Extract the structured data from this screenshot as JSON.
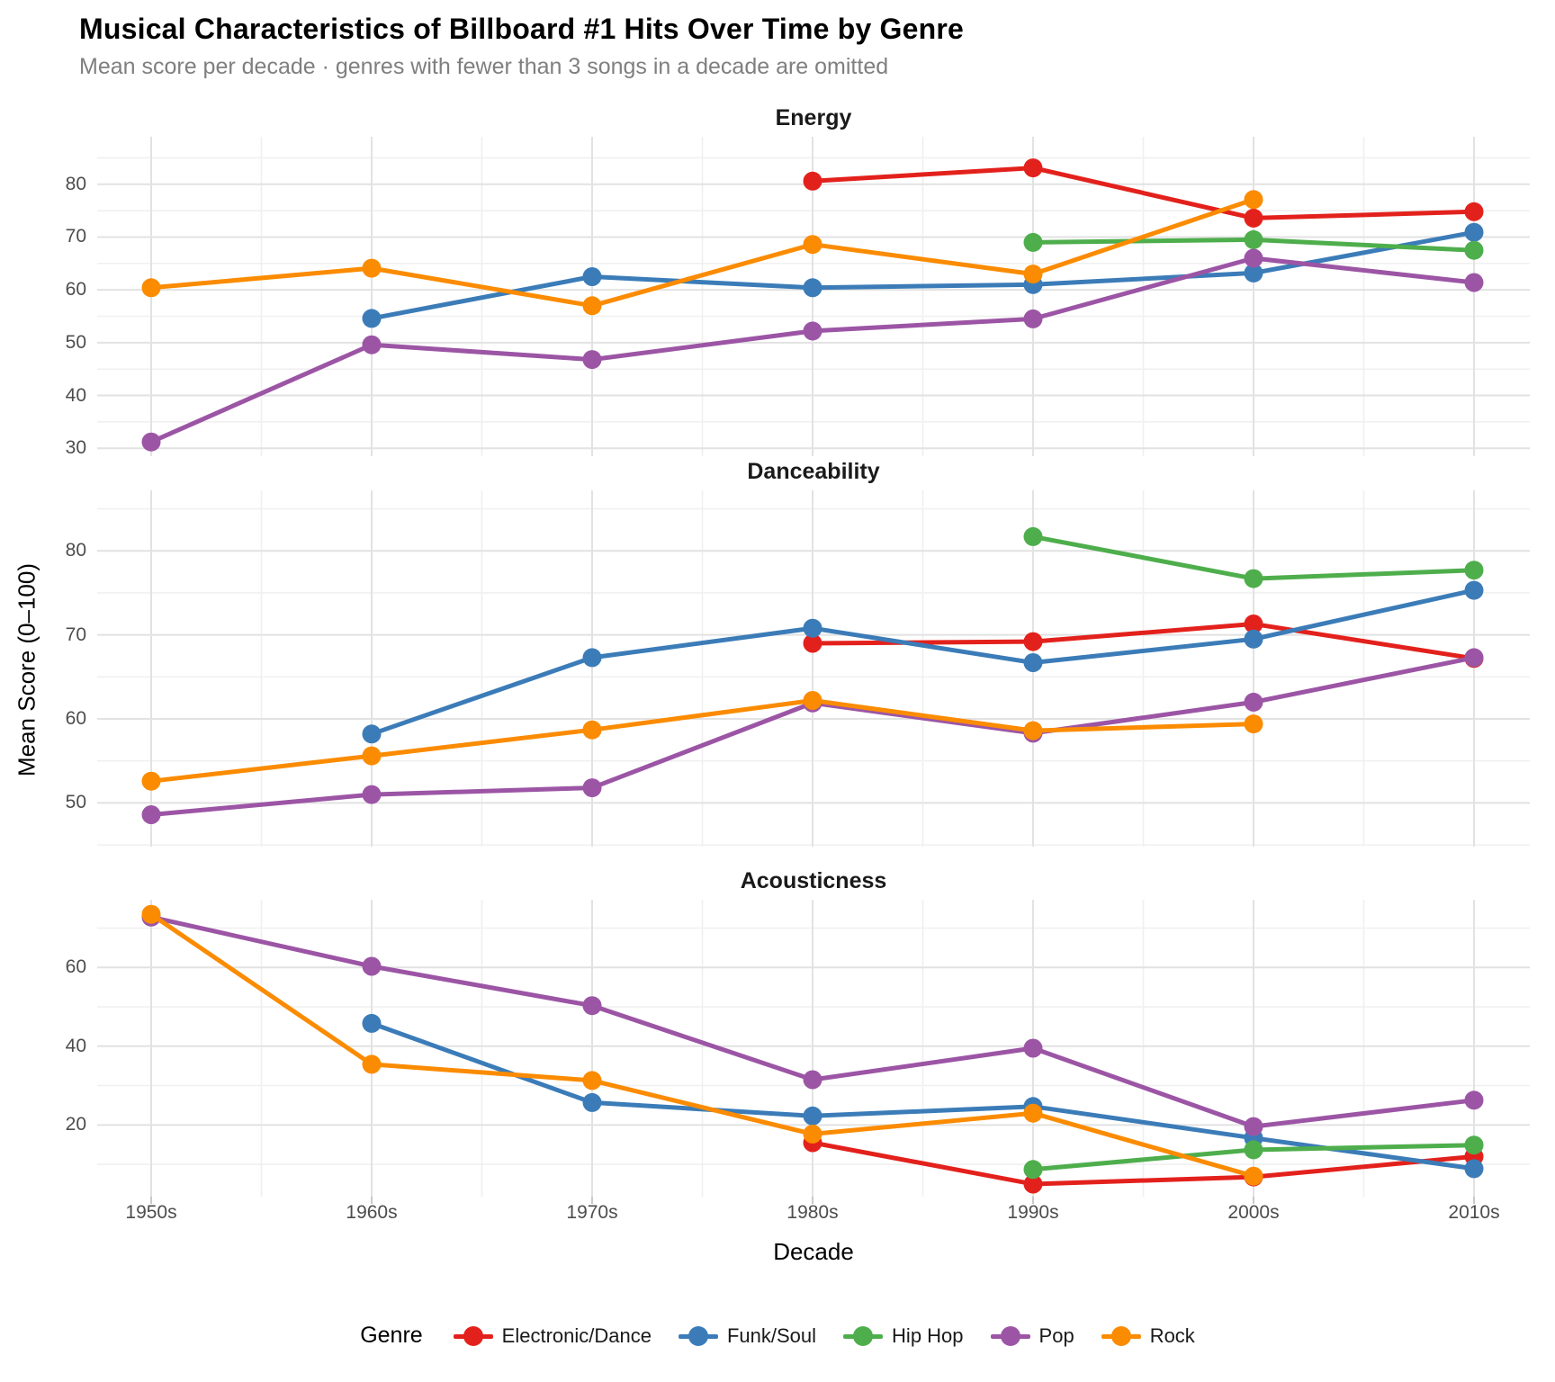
{
  "header": {
    "title": "Musical Characteristics of Billboard #1 Hits Over Time by Genre",
    "subtitle": "Mean score per decade · genres with fewer than 3 songs in a decade are omitted"
  },
  "axes": {
    "x_label": "Decade",
    "y_label": "Mean Score (0–100)"
  },
  "legend": {
    "title": "Genre",
    "items": [
      "Electronic/Dance",
      "Funk/Soul",
      "Hip Hop",
      "Pop",
      "Rock"
    ]
  },
  "colors": {
    "Electronic/Dance": "#e3211c",
    "Funk/Soul": "#3b7cb8",
    "Hip Hop": "#4eae4c",
    "Pop": "#9c55a5",
    "Rock": "#fb8b00",
    "grid_major": "#e2e2e2",
    "grid_minor": "#f0f0f0",
    "tick_text": "#4d4d4d",
    "subtitle_text": "#7f7f7f"
  },
  "chart_data": {
    "type": "line",
    "legend_position": "bottom",
    "grid": true,
    "categories": [
      "1950s",
      "1960s",
      "1970s",
      "1980s",
      "1990s",
      "2000s",
      "2010s"
    ],
    "facets": [
      {
        "title": "Energy",
        "ylim": [
          28.5,
          89.0
        ],
        "yticks": [
          30,
          40,
          50,
          60,
          70,
          80
        ],
        "yminor": [
          35,
          45,
          55,
          65,
          75,
          85
        ],
        "series": [
          {
            "name": "Electronic/Dance",
            "values": [
              null,
              null,
              null,
              80.6,
              83.1,
              73.6,
              74.8
            ]
          },
          {
            "name": "Funk/Soul",
            "values": [
              null,
              54.6,
              62.5,
              60.4,
              61.0,
              63.2,
              70.9
            ]
          },
          {
            "name": "Hip Hop",
            "values": [
              null,
              null,
              null,
              null,
              69.0,
              69.5,
              67.5
            ]
          },
          {
            "name": "Pop",
            "values": [
              31.2,
              49.6,
              46.8,
              52.2,
              54.5,
              66.0,
              61.4
            ]
          },
          {
            "name": "Rock",
            "values": [
              60.4,
              64.1,
              57.0,
              68.6,
              63.0,
              77.1,
              null
            ]
          }
        ]
      },
      {
        "title": "Danceability",
        "ylim": [
          44.8,
          87.2
        ],
        "yticks": [
          50,
          60,
          70,
          80
        ],
        "yminor": [
          45,
          55,
          65,
          75,
          85
        ],
        "series": [
          {
            "name": "Electronic/Dance",
            "values": [
              null,
              null,
              null,
              69.0,
              69.2,
              71.3,
              67.2
            ]
          },
          {
            "name": "Funk/Soul",
            "values": [
              null,
              58.2,
              67.3,
              70.8,
              66.7,
              69.5,
              75.3
            ]
          },
          {
            "name": "Hip Hop",
            "values": [
              null,
              null,
              null,
              null,
              81.7,
              76.7,
              77.7
            ]
          },
          {
            "name": "Pop",
            "values": [
              48.6,
              51.0,
              51.8,
              61.9,
              58.3,
              62.0,
              67.3
            ]
          },
          {
            "name": "Rock",
            "values": [
              52.6,
              55.6,
              58.7,
              62.2,
              58.6,
              59.4,
              null
            ]
          }
        ]
      },
      {
        "title": "Acousticness",
        "ylim": [
          1.8,
          77.2
        ],
        "yticks": [
          20,
          40,
          60
        ],
        "yminor": [
          10,
          30,
          50,
          70
        ],
        "series": [
          {
            "name": "Electronic/Dance",
            "values": [
              null,
              null,
              null,
              15.5,
              5.0,
              6.8,
              12.0
            ]
          },
          {
            "name": "Funk/Soul",
            "values": [
              null,
              45.8,
              25.7,
              22.3,
              24.7,
              16.7,
              8.9
            ]
          },
          {
            "name": "Hip Hop",
            "values": [
              null,
              null,
              null,
              null,
              8.7,
              13.7,
              14.9
            ]
          },
          {
            "name": "Pop",
            "values": [
              72.8,
              60.3,
              50.3,
              31.5,
              39.5,
              19.6,
              26.3
            ]
          },
          {
            "name": "Rock",
            "values": [
              73.5,
              35.4,
              31.3,
              17.7,
              23.0,
              7.0,
              null
            ]
          }
        ]
      }
    ]
  }
}
